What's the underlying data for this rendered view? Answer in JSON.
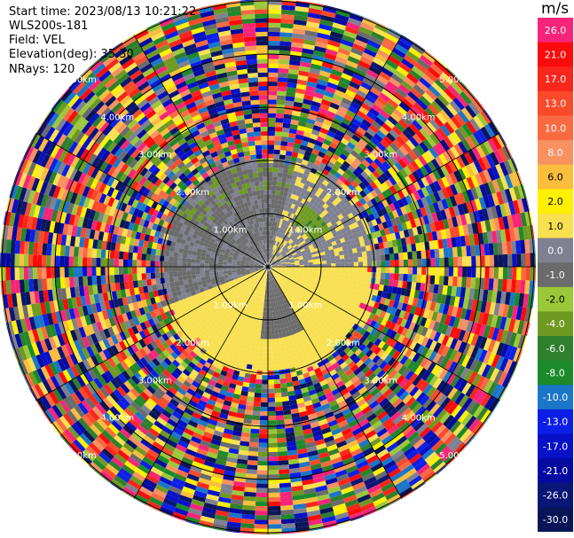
{
  "info": {
    "start_time": "Start time: 2023/08/13 10:21:22",
    "instrument": "WLS200s-181",
    "field": "Field: VEL",
    "elevation": "Elevation(deg): 35.30",
    "nrays": "NRays: 120"
  },
  "colorbar": {
    "unit": "m/s",
    "bins": [
      {
        "label": "26.0",
        "color": "#f7247a"
      },
      {
        "label": "21.0",
        "color": "#fb0b0b"
      },
      {
        "label": "17.0",
        "color": "#f9261c"
      },
      {
        "label": "13.0",
        "color": "#f94a2a"
      },
      {
        "label": "10.0",
        "color": "#f96a42"
      },
      {
        "label": "8.0",
        "color": "#f99060"
      },
      {
        "label": "6.0",
        "color": "#fbbd3c"
      },
      {
        "label": "2.0",
        "color": "#ffef00"
      },
      {
        "label": "1.0",
        "color": "#f8e050"
      },
      {
        "label": "0.0",
        "color": "#7f8190"
      },
      {
        "label": "-1.0",
        "color": "#6b6b6b"
      },
      {
        "label": "-2.0",
        "color": "#9bc83a"
      },
      {
        "label": "-4.0",
        "color": "#6e9a22"
      },
      {
        "label": "-6.0",
        "color": "#2f7f2c"
      },
      {
        "label": "-8.0",
        "color": "#1c8a2a"
      },
      {
        "label": "-10.0",
        "color": "#1b76c8"
      },
      {
        "label": "-13.0",
        "color": "#0c1fe6"
      },
      {
        "label": "-17.0",
        "color": "#0810c8"
      },
      {
        "label": "-21.0",
        "color": "#050aa0"
      },
      {
        "label": "-26.0",
        "color": "#091676"
      },
      {
        "label": "-30.0",
        "color": "#0a1558"
      }
    ]
  },
  "chart_data": {
    "type": "heatmap",
    "projection": "polar-ppi",
    "field": "VEL",
    "units": "m/s",
    "vmin": -30.0,
    "vmax": 26.0,
    "n_rays": 120,
    "ring_labels": [
      {
        "label": "1.00km",
        "dist": 1
      },
      {
        "label": "2.00km",
        "dist": 2
      },
      {
        "label": "3.00km",
        "dist": 3
      },
      {
        "label": "4.00km",
        "dist": 4
      },
      {
        "label": "5.00km",
        "dist": 5
      }
    ],
    "max_range_km": 5.0,
    "near_field": "structured wind pattern, mostly -4 to 2 m/s within ~1.8 km",
    "far_field": "noise, random values over the full scale"
  }
}
